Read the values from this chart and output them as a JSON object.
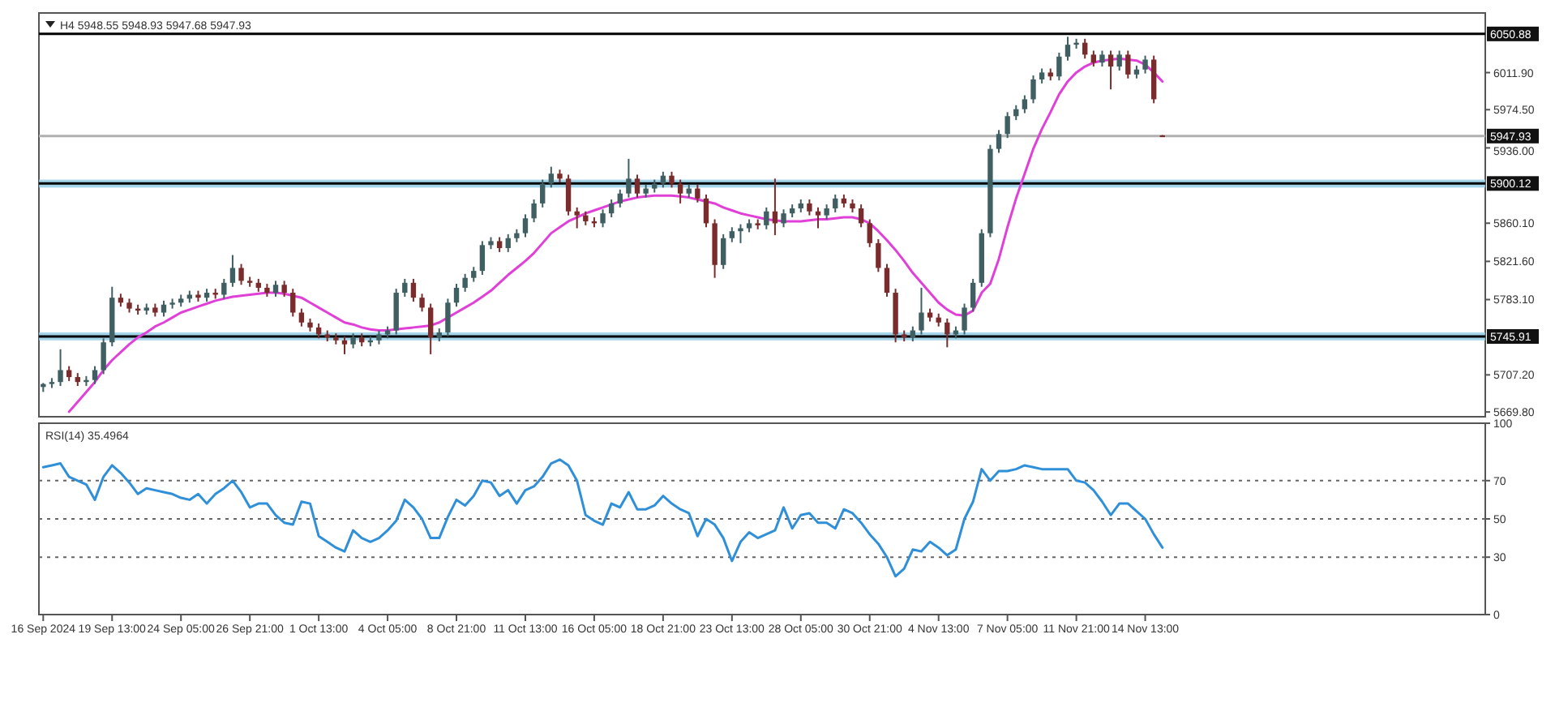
{
  "chart_data": [
    {
      "type": "candlestick",
      "title": "H4 5948.55 5948.93 5947.68 5947.93",
      "categories": [
        null,
        null,
        null,
        null,
        null,
        null,
        null,
        null,
        null,
        null,
        null,
        null,
        null,
        null,
        null,
        null,
        null,
        null,
        null,
        null,
        null,
        null,
        null,
        null,
        null,
        null,
        null,
        null,
        null,
        null,
        null,
        null,
        null,
        null,
        null,
        null,
        null,
        null,
        null,
        null,
        null,
        null,
        null,
        null,
        null,
        null,
        null,
        null,
        null,
        null,
        null,
        null,
        null,
        null,
        null,
        null,
        null,
        null,
        null,
        null,
        null,
        null,
        null,
        null,
        null,
        null,
        null,
        null,
        null,
        null,
        null,
        null,
        null,
        null,
        null,
        null,
        null,
        null,
        null,
        null,
        null,
        null,
        null,
        null,
        null,
        null,
        null,
        null,
        null,
        null,
        null,
        null,
        null,
        null,
        null,
        null,
        null,
        null,
        null,
        null,
        null,
        null,
        null,
        null,
        null,
        null,
        null,
        null,
        null,
        null,
        null,
        null,
        null,
        null,
        null,
        null,
        null,
        null,
        null,
        null,
        null,
        null,
        null,
        null,
        null,
        null,
        null,
        null,
        null,
        null,
        null,
        null,
        null,
        null,
        null,
        null,
        null,
        null,
        null,
        null,
        null,
        null,
        null,
        null,
        null,
        null,
        null,
        null,
        null,
        null,
        null,
        null,
        null,
        null,
        null,
        null,
        null,
        null,
        null,
        null,
        null,
        null,
        null,
        null,
        null,
        null,
        null,
        null
      ],
      "ohlc": [
        [
          5695,
          5699,
          5690,
          5698
        ],
        [
          5698,
          5704,
          5694,
          5700
        ],
        [
          5700,
          5733,
          5696,
          5712
        ],
        [
          5712,
          5716,
          5701,
          5705
        ],
        [
          5705,
          5709,
          5696,
          5700
        ],
        [
          5700,
          5706,
          5696,
          5702
        ],
        [
          5702,
          5716,
          5698,
          5712
        ],
        [
          5712,
          5744,
          5708,
          5740
        ],
        [
          5740,
          5796,
          5736,
          5785
        ],
        [
          5785,
          5789,
          5776,
          5780
        ],
        [
          5780,
          5784,
          5770,
          5774
        ],
        [
          5774,
          5778,
          5768,
          5772
        ],
        [
          5772,
          5779,
          5768,
          5775
        ],
        [
          5775,
          5779,
          5766,
          5770
        ],
        [
          5770,
          5782,
          5766,
          5778
        ],
        [
          5778,
          5784,
          5774,
          5780
        ],
        [
          5780,
          5788,
          5776,
          5784
        ],
        [
          5784,
          5792,
          5780,
          5788
        ],
        [
          5788,
          5792,
          5781,
          5785
        ],
        [
          5785,
          5794,
          5781,
          5790
        ],
        [
          5790,
          5794,
          5784,
          5788
        ],
        [
          5788,
          5804,
          5784,
          5800
        ],
        [
          5800,
          5828,
          5796,
          5815
        ],
        [
          5815,
          5819,
          5798,
          5802
        ],
        [
          5802,
          5806,
          5796,
          5800
        ],
        [
          5800,
          5804,
          5791,
          5795
        ],
        [
          5795,
          5799,
          5786,
          5790
        ],
        [
          5790,
          5802,
          5786,
          5798
        ],
        [
          5798,
          5802,
          5786,
          5790
        ],
        [
          5790,
          5794,
          5766,
          5770
        ],
        [
          5770,
          5774,
          5756,
          5760
        ],
        [
          5760,
          5764,
          5751,
          5755
        ],
        [
          5755,
          5759,
          5744,
          5748
        ],
        [
          5748,
          5752,
          5741,
          5745
        ],
        [
          5745,
          5749,
          5738,
          5742
        ],
        [
          5742,
          5746,
          5728,
          5738
        ],
        [
          5738,
          5749,
          5734,
          5745
        ],
        [
          5745,
          5749,
          5736,
          5740
        ],
        [
          5740,
          5746,
          5736,
          5742
        ],
        [
          5742,
          5752,
          5738,
          5748
        ],
        [
          5748,
          5756,
          5744,
          5752
        ],
        [
          5752,
          5794,
          5748,
          5790
        ],
        [
          5790,
          5804,
          5786,
          5800
        ],
        [
          5800,
          5804,
          5781,
          5785
        ],
        [
          5785,
          5789,
          5771,
          5775
        ],
        [
          5775,
          5779,
          5728,
          5745
        ],
        [
          5745,
          5754,
          5741,
          5750
        ],
        [
          5750,
          5784,
          5746,
          5780
        ],
        [
          5780,
          5799,
          5776,
          5795
        ],
        [
          5795,
          5809,
          5791,
          5805
        ],
        [
          5805,
          5816,
          5801,
          5812
        ],
        [
          5812,
          5842,
          5808,
          5838
        ],
        [
          5838,
          5846,
          5834,
          5842
        ],
        [
          5842,
          5846,
          5831,
          5835
        ],
        [
          5835,
          5849,
          5831,
          5845
        ],
        [
          5845,
          5854,
          5841,
          5850
        ],
        [
          5850,
          5869,
          5846,
          5865
        ],
        [
          5865,
          5884,
          5861,
          5880
        ],
        [
          5880,
          5904,
          5876,
          5900
        ],
        [
          5900,
          5917,
          5896,
          5910
        ],
        [
          5910,
          5914,
          5901,
          5905
        ],
        [
          5905,
          5909,
          5868,
          5872
        ],
        [
          5872,
          5876,
          5855,
          5868
        ],
        [
          5868,
          5872,
          5858,
          5862
        ],
        [
          5862,
          5866,
          5856,
          5860
        ],
        [
          5860,
          5874,
          5856,
          5870
        ],
        [
          5870,
          5884,
          5866,
          5880
        ],
        [
          5880,
          5894,
          5876,
          5890
        ],
        [
          5890,
          5925,
          5886,
          5905
        ],
        [
          5905,
          5909,
          5886,
          5890
        ],
        [
          5890,
          5899,
          5886,
          5895
        ],
        [
          5895,
          5904,
          5891,
          5900
        ],
        [
          5900,
          5912,
          5896,
          5908
        ],
        [
          5908,
          5912,
          5896,
          5900
        ],
        [
          5900,
          5904,
          5880,
          5890
        ],
        [
          5890,
          5899,
          5886,
          5895
        ],
        [
          5895,
          5899,
          5881,
          5885
        ],
        [
          5885,
          5889,
          5856,
          5860
        ],
        [
          5860,
          5864,
          5805,
          5818
        ],
        [
          5818,
          5849,
          5814,
          5845
        ],
        [
          5845,
          5856,
          5841,
          5852
        ],
        [
          5852,
          5859,
          5840,
          5855
        ],
        [
          5855,
          5864,
          5851,
          5860
        ],
        [
          5860,
          5864,
          5854,
          5858
        ],
        [
          5858,
          5876,
          5854,
          5872
        ],
        [
          5872,
          5905,
          5848,
          5860
        ],
        [
          5860,
          5874,
          5856,
          5870
        ],
        [
          5870,
          5879,
          5866,
          5875
        ],
        [
          5875,
          5884,
          5871,
          5880
        ],
        [
          5880,
          5884,
          5868,
          5872
        ],
        [
          5872,
          5876,
          5855,
          5868
        ],
        [
          5868,
          5879,
          5864,
          5875
        ],
        [
          5875,
          5889,
          5871,
          5885
        ],
        [
          5885,
          5889,
          5876,
          5880
        ],
        [
          5880,
          5884,
          5871,
          5875
        ],
        [
          5875,
          5879,
          5856,
          5860
        ],
        [
          5860,
          5864,
          5836,
          5840
        ],
        [
          5840,
          5844,
          5811,
          5815
        ],
        [
          5815,
          5819,
          5786,
          5790
        ],
        [
          5790,
          5794,
          5740,
          5748
        ],
        [
          5748,
          5752,
          5741,
          5745
        ],
        [
          5745,
          5756,
          5741,
          5752
        ],
        [
          5752,
          5795,
          5748,
          5770
        ],
        [
          5770,
          5774,
          5761,
          5765
        ],
        [
          5765,
          5769,
          5756,
          5760
        ],
        [
          5760,
          5764,
          5735,
          5748
        ],
        [
          5748,
          5756,
          5744,
          5752
        ],
        [
          5752,
          5779,
          5748,
          5775
        ],
        [
          5775,
          5804,
          5771,
          5800
        ],
        [
          5800,
          5854,
          5796,
          5850
        ],
        [
          5850,
          5939,
          5846,
          5935
        ],
        [
          5935,
          5954,
          5931,
          5950
        ],
        [
          5950,
          5972,
          5946,
          5968
        ],
        [
          5968,
          5979,
          5964,
          5975
        ],
        [
          5975,
          5989,
          5971,
          5985
        ],
        [
          5985,
          6009,
          5981,
          6005
        ],
        [
          6005,
          6016,
          6001,
          6012
        ],
        [
          6012,
          6016,
          6004,
          6008
        ],
        [
          6008,
          6032,
          6004,
          6028
        ],
        [
          6028,
          6048,
          6024,
          6040
        ],
        [
          6040,
          6046,
          6036,
          6042
        ],
        [
          6042,
          6046,
          6026,
          6030
        ],
        [
          6030,
          6034,
          6018,
          6022
        ],
        [
          6022,
          6034,
          6018,
          6030
        ],
        [
          6030,
          6034,
          5995,
          6018
        ],
        [
          6018,
          6034,
          6014,
          6030
        ],
        [
          6030,
          6034,
          6006,
          6010
        ],
        [
          6010,
          6019,
          6006,
          6015
        ],
        [
          6015,
          6029,
          6011,
          6025
        ],
        [
          6025,
          6029,
          5981,
          5985
        ],
        [
          5948.55,
          5948.93,
          5947.68,
          5947.93
        ],
        null,
        null,
        null,
        null,
        null,
        null,
        null,
        null,
        null,
        null,
        null,
        null,
        null,
        null,
        null,
        null,
        null,
        null,
        null,
        null,
        null,
        null,
        null,
        null,
        null,
        null,
        null,
        null,
        null,
        null,
        null,
        null,
        null,
        null,
        null,
        null,
        null
      ],
      "series": [
        {
          "type": "line",
          "color": "#e040d8",
          "values": [
            null,
            null,
            null,
            5670,
            5680,
            5690,
            5700,
            5712,
            5722,
            5730,
            5738,
            5745,
            5750,
            5756,
            5760,
            5765,
            5770,
            5773,
            5776,
            5779,
            5782,
            5784,
            5786,
            5787,
            5788,
            5789,
            5790,
            5790,
            5789,
            5787,
            5785,
            5780,
            5775,
            5770,
            5765,
            5760,
            5758,
            5755,
            5753,
            5752,
            5752,
            5753,
            5754,
            5755,
            5756,
            5757,
            5760,
            5765,
            5770,
            5775,
            5780,
            5786,
            5792,
            5800,
            5808,
            5815,
            5822,
            5830,
            5840,
            5850,
            5856,
            5862,
            5866,
            5870,
            5873,
            5876,
            5879,
            5882,
            5884,
            5886,
            5887,
            5888,
            5888,
            5888,
            5887,
            5886,
            5884,
            5882,
            5880,
            5876,
            5873,
            5870,
            5868,
            5866,
            5864,
            5863,
            5862,
            5862,
            5862,
            5863,
            5864,
            5864,
            5865,
            5866,
            5866,
            5864,
            5860,
            5852,
            5843,
            5833,
            5822,
            5810,
            5800,
            5790,
            5780,
            5773,
            5768,
            5767,
            5772,
            5790,
            5799,
            5824,
            5856,
            5885,
            5910,
            5935,
            5955,
            5972,
            5990,
            6003,
            6012,
            6018,
            6022,
            6024,
            6025,
            6026,
            6025,
            6024,
            6020,
            6012,
            6003,
            null,
            null,
            null,
            null,
            null,
            null,
            null,
            null,
            null,
            null,
            null,
            null,
            null,
            null,
            null,
            null,
            null,
            null,
            null,
            null,
            null,
            null,
            null,
            null,
            null,
            null,
            null,
            null,
            null,
            null,
            null,
            null,
            null,
            null,
            null,
            null,
            null
          ]
        }
      ],
      "ylim": [
        5665,
        6072
      ],
      "yticks": [
        {
          "value": 6011.9,
          "label": "6011.90"
        },
        {
          "value": 5974.5,
          "label": "5974.50"
        },
        {
          "value": 5936,
          "label": "5936.00"
        },
        {
          "value": 5860.1,
          "label": "5860.10"
        },
        {
          "value": 5821.6,
          "label": "5821.60"
        },
        {
          "value": 5783.1,
          "label": "5783.10"
        },
        {
          "value": 5707.2,
          "label": "5707.20"
        },
        {
          "value": 5669.8,
          "label": "5669.80"
        }
      ],
      "ref_lines": [
        {
          "axis": "y",
          "value": 6050.88,
          "label": "6050.88",
          "color": "#000000"
        },
        {
          "axis": "y",
          "value": 5947.93,
          "label": "5947.93",
          "color": "#b0b0b0"
        },
        {
          "axis": "y",
          "value": 5900.12,
          "label": "5900.12",
          "color": "#000000"
        },
        {
          "axis": "y",
          "value": 5745.91,
          "label": "5745.91",
          "color": "#000000"
        }
      ],
      "bands": [
        {
          "axis": "y",
          "from": 5896,
          "to": 5904,
          "color": "#8ecae6"
        },
        {
          "axis": "y",
          "from": 5742,
          "to": 5750,
          "color": "#8ecae6"
        }
      ],
      "tick_labels": "y"
    },
    {
      "type": "line",
      "title": "RSI(14) 35.4964",
      "categories": [
        "16 Sep 2024",
        null,
        null,
        null,
        null,
        null,
        null,
        null,
        "19 Sep 13:00",
        null,
        null,
        null,
        null,
        null,
        null,
        null,
        "24 Sep 05:00",
        null,
        null,
        null,
        null,
        null,
        null,
        null,
        "26 Sep 21:00",
        null,
        null,
        null,
        null,
        null,
        null,
        null,
        "1 Oct 13:00",
        null,
        null,
        null,
        null,
        null,
        null,
        null,
        "4 Oct 05:00",
        null,
        null,
        null,
        null,
        null,
        null,
        null,
        "8 Oct 21:00",
        null,
        null,
        null,
        null,
        null,
        null,
        null,
        "11 Oct 13:00",
        null,
        null,
        null,
        null,
        null,
        null,
        null,
        "16 Oct 05:00",
        null,
        null,
        null,
        null,
        null,
        null,
        null,
        "18 Oct 21:00",
        null,
        null,
        null,
        null,
        null,
        null,
        null,
        "23 Oct 13:00",
        null,
        null,
        null,
        null,
        null,
        null,
        null,
        "28 Oct 05:00",
        null,
        null,
        null,
        null,
        null,
        null,
        null,
        "30 Oct 21:00",
        null,
        null,
        null,
        null,
        null,
        null,
        null,
        "4 Nov 13:00",
        null,
        null,
        null,
        null,
        null,
        null,
        null,
        "7 Nov 05:00",
        null,
        null,
        null,
        null,
        null,
        null,
        null,
        "11 Nov 21:00",
        null,
        null,
        null,
        null,
        null,
        null,
        null,
        "14 Nov 13:00",
        null,
        null,
        null,
        null,
        null,
        null,
        null,
        null,
        null,
        null,
        null,
        null,
        null,
        null,
        null,
        null,
        null,
        null,
        null,
        null,
        null,
        null,
        null,
        null,
        null,
        null,
        null,
        null,
        null,
        null,
        null,
        null,
        null,
        null,
        null,
        null,
        null,
        null,
        null
      ],
      "series": [
        {
          "color": "#2f8fd8",
          "values": [
            77,
            78,
            79,
            72,
            70,
            68,
            60,
            72,
            78,
            74,
            69,
            63,
            66,
            65,
            64,
            63,
            61,
            60,
            63,
            58,
            63,
            66,
            70,
            64,
            56,
            58,
            58,
            52,
            48,
            47,
            59,
            58,
            41,
            38,
            35,
            33,
            44,
            40,
            38,
            40,
            44,
            49,
            60,
            56,
            50,
            40,
            40,
            51,
            60,
            57,
            62,
            70,
            69,
            62,
            65,
            58,
            65,
            67,
            72,
            79,
            81,
            78,
            70,
            52,
            49,
            47,
            58,
            56,
            64,
            55,
            55,
            57,
            62,
            58,
            55,
            53,
            41,
            50,
            47,
            40,
            28,
            38,
            43,
            40,
            42,
            44,
            56,
            45,
            52,
            53,
            48,
            48,
            45,
            55,
            53,
            48,
            42,
            37,
            30,
            20,
            24,
            34,
            33,
            38,
            35,
            31,
            34,
            50,
            59,
            76,
            70,
            75,
            75,
            76,
            78,
            77,
            76,
            76,
            76,
            76,
            70,
            69,
            65,
            59,
            52,
            58,
            58,
            54,
            50,
            42,
            35,
            null,
            null,
            null,
            null,
            null,
            null,
            null,
            null,
            null,
            null,
            null,
            null,
            null,
            null,
            null,
            null,
            null,
            null,
            null,
            null,
            null,
            null,
            null,
            null,
            null,
            null,
            null,
            null,
            null,
            null,
            null,
            null,
            null,
            null,
            null,
            null,
            null
          ]
        }
      ],
      "ylim": [
        0,
        100
      ],
      "yticks": [
        0,
        30,
        50,
        70,
        100
      ],
      "ref_lines": [
        {
          "axis": "y",
          "value": 70,
          "color": "#666666",
          "line_style": "dotted"
        },
        {
          "axis": "y",
          "value": 50,
          "color": "#666666",
          "line_style": "dotted"
        },
        {
          "axis": "y",
          "value": 30,
          "color": "#666666",
          "line_style": "dotted"
        }
      ]
    }
  ]
}
